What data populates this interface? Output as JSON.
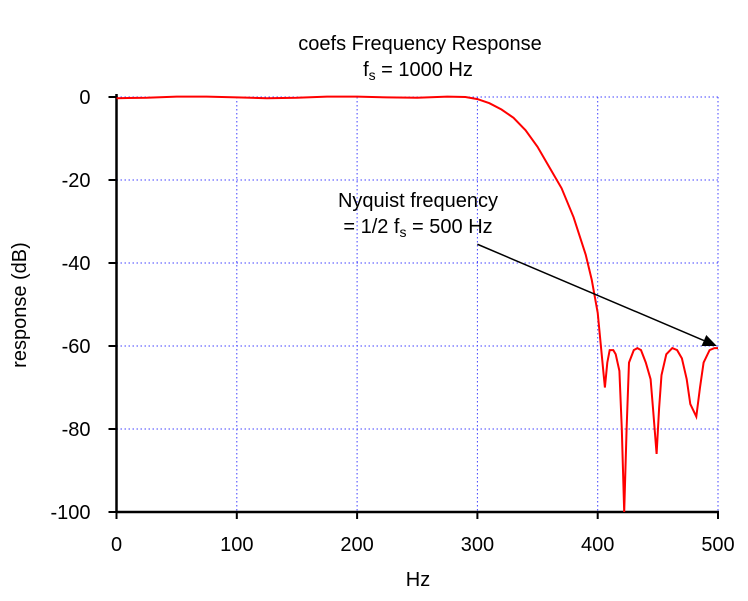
{
  "chart_data": {
    "type": "line",
    "title": "coefs Frequency Response",
    "subtitle": {
      "prefix": "f",
      "sub": "s",
      "suffix": " = 1000 Hz"
    },
    "xlabel": "Hz",
    "ylabel": "response (dB)",
    "xlim": [
      0,
      500
    ],
    "ylim": [
      -100,
      0
    ],
    "xticks": [
      0,
      100,
      200,
      300,
      400,
      500
    ],
    "yticks": [
      0,
      -20,
      -40,
      -60,
      -80,
      -100
    ],
    "grid": true,
    "series": [
      {
        "name": "coefs",
        "color": "#ff0000",
        "x": [
          0,
          25,
          50,
          75,
          100,
          125,
          150,
          175,
          200,
          225,
          250,
          275,
          290,
          300,
          310,
          320,
          330,
          340,
          350,
          360,
          370,
          380,
          390,
          395,
          400,
          402,
          405,
          406,
          408,
          410,
          413,
          415,
          418,
          420,
          422,
          424,
          426,
          430,
          433,
          436,
          440,
          444,
          446,
          449,
          451,
          453,
          457,
          462,
          466,
          470,
          474,
          477,
          482,
          485,
          488,
          493,
          497,
          500
        ],
        "y": [
          -0.3,
          -0.2,
          0.1,
          0.1,
          -0.1,
          -0.3,
          -0.2,
          0.1,
          0.1,
          -0.1,
          -0.2,
          0.1,
          0,
          -0.5,
          -1.5,
          -3,
          -5,
          -8,
          -12,
          -17,
          -22,
          -29,
          -38,
          -44,
          -52,
          -58,
          -67,
          -70,
          -64,
          -61,
          -61,
          -62,
          -66,
          -80,
          -100,
          -80,
          -64,
          -61,
          -60.5,
          -61,
          -64,
          -68,
          -75,
          -86,
          -75,
          -67,
          -62,
          -60.5,
          -61,
          -63,
          -68,
          -74,
          -77,
          -70,
          -64,
          -61,
          -60.5,
          -60.5
        ]
      }
    ],
    "annotation": {
      "line1": "Nyquist frequency",
      "line2_prefix": "= 1/2 f",
      "line2_sub": "s",
      "line2_suffix": " = 500 Hz",
      "arrow_from": [
        300,
        -35
      ],
      "arrow_to": [
        499,
        -60
      ]
    },
    "colors": {
      "grid": "#4040ff",
      "axis": "#000000"
    }
  }
}
